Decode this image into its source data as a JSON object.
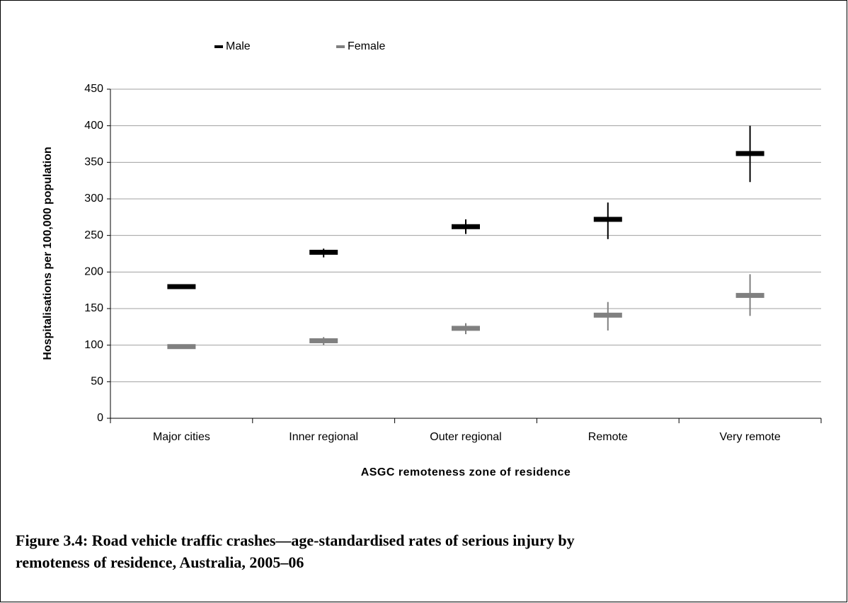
{
  "chart_data": {
    "type": "errorbar",
    "y_label": "Hospitalisations per 100,000 population",
    "x_label": "ASGC remoteness zone of residence",
    "caption": "Figure 3.4: Road vehicle traffic crashes—age-standardised rates of serious injury by remoteness of residence, Australia, 2005–06",
    "categories": [
      "Major cities",
      "Inner regional",
      "Outer regional",
      "Remote",
      "Very remote"
    ],
    "series": [
      {
        "name": "Male",
        "color": "#000000",
        "values": [
          180,
          227,
          262,
          272,
          362
        ],
        "lower": [
          178,
          220,
          252,
          245,
          323
        ],
        "upper": [
          182,
          232,
          272,
          295,
          400
        ]
      },
      {
        "name": "Female",
        "color": "#808080",
        "values": [
          98,
          106,
          123,
          141,
          168
        ],
        "lower": [
          95,
          100,
          115,
          120,
          140
        ],
        "upper": [
          101,
          111,
          130,
          159,
          197
        ]
      }
    ],
    "ylim": [
      0,
      450
    ],
    "yticks": [
      0,
      50,
      100,
      150,
      200,
      250,
      300,
      350,
      400,
      450
    ],
    "grid": true,
    "legend": "top"
  }
}
